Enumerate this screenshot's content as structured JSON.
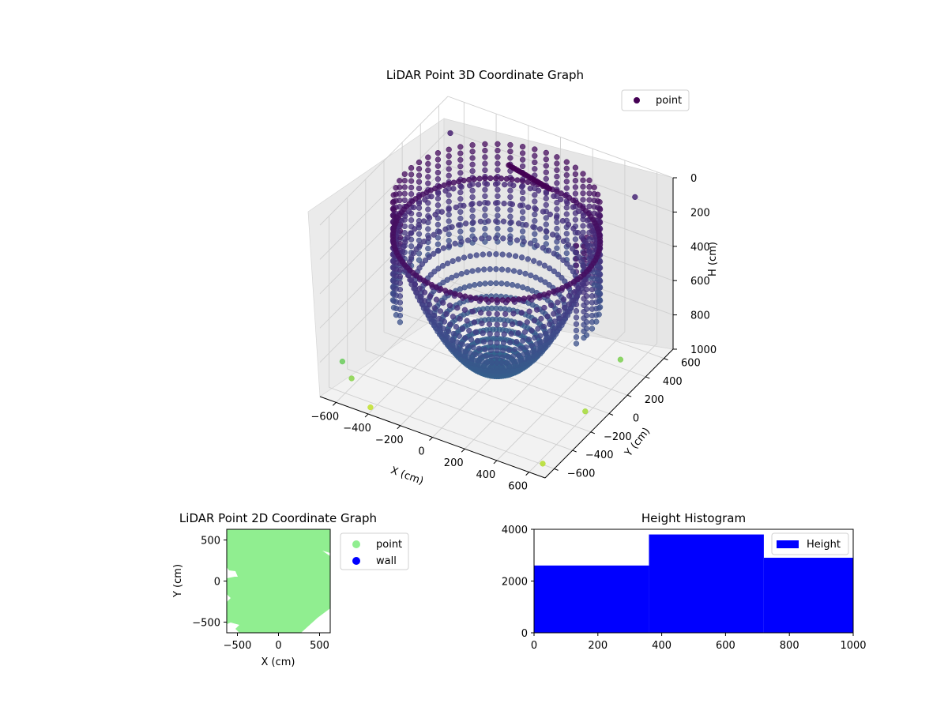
{
  "chart_data": [
    {
      "type": "scatter",
      "projection": "3d",
      "title": "LiDAR Point 3D Coordinate Graph",
      "xlabel": "X (cm)",
      "ylabel": "Y (cm)",
      "zlabel": "H (cm)",
      "xlim": [
        -700,
        700
      ],
      "ylim": [
        -700,
        700
      ],
      "zlim": [
        1000,
        0
      ],
      "xticks": [
        "−600",
        "−400",
        "−200",
        "0",
        "200",
        "400",
        "600"
      ],
      "yticks": [
        "−600",
        "−400",
        "−200",
        "0",
        "200",
        "400",
        "600"
      ],
      "zticks": [
        "0",
        "200",
        "400",
        "600",
        "800",
        "1000"
      ],
      "grid": true,
      "legend": {
        "position": "top-right",
        "entries": [
          {
            "label": "point",
            "color": "#440154"
          }
        ]
      },
      "colormap": "viridis (by height)",
      "series": [
        {
          "name": "point",
          "description_points": {
            "ring_radius_cm": 560,
            "ring_height_cm": 0,
            "floor_height_cm": 1000
          },
          "stray_points": [
            {
              "x": -640,
              "y": -560,
              "h": 850
            },
            {
              "x": -560,
              "y": -600,
              "h": 900
            },
            {
              "x": -600,
              "y": 550,
              "h": 100
            },
            {
              "x": 520,
              "y": 600,
              "h": 120
            },
            {
              "x": 620,
              "y": -120,
              "h": 950
            },
            {
              "x": 600,
              "y": 300,
              "h": 880
            },
            {
              "x": -420,
              "y": -640,
              "h": 1000
            },
            {
              "x": 640,
              "y": -620,
              "h": 980
            }
          ]
        }
      ]
    },
    {
      "type": "scatter",
      "title": "LiDAR Point 2D Coordinate Graph",
      "xlabel": "X (cm)",
      "ylabel": "Y (cm)",
      "xlim": [
        -630,
        630
      ],
      "ylim": [
        -630,
        630
      ],
      "xticks": [
        -500,
        0,
        500
      ],
      "yticks": [
        -500,
        0,
        500
      ],
      "legend": {
        "position": "outside-right",
        "entries": [
          {
            "label": "point",
            "color": "#90ee90"
          },
          {
            "label": "wall",
            "color": "#0000ff"
          }
        ]
      }
    },
    {
      "type": "bar",
      "title": "Height Histogram",
      "xlim": [
        0,
        1000
      ],
      "ylim": [
        0,
        4000
      ],
      "xticks": [
        0,
        200,
        400,
        600,
        800,
        1000
      ],
      "yticks": [
        0,
        2000,
        4000
      ],
      "bins": [
        {
          "from": 0,
          "to": 360,
          "count": 2600
        },
        {
          "from": 360,
          "to": 720,
          "count": 3800
        },
        {
          "from": 720,
          "to": 1000,
          "count": 2900
        }
      ],
      "color": "#0000ff",
      "legend": {
        "position": "top-right",
        "entries": [
          {
            "label": "Height",
            "color": "#0000ff"
          }
        ]
      }
    }
  ]
}
